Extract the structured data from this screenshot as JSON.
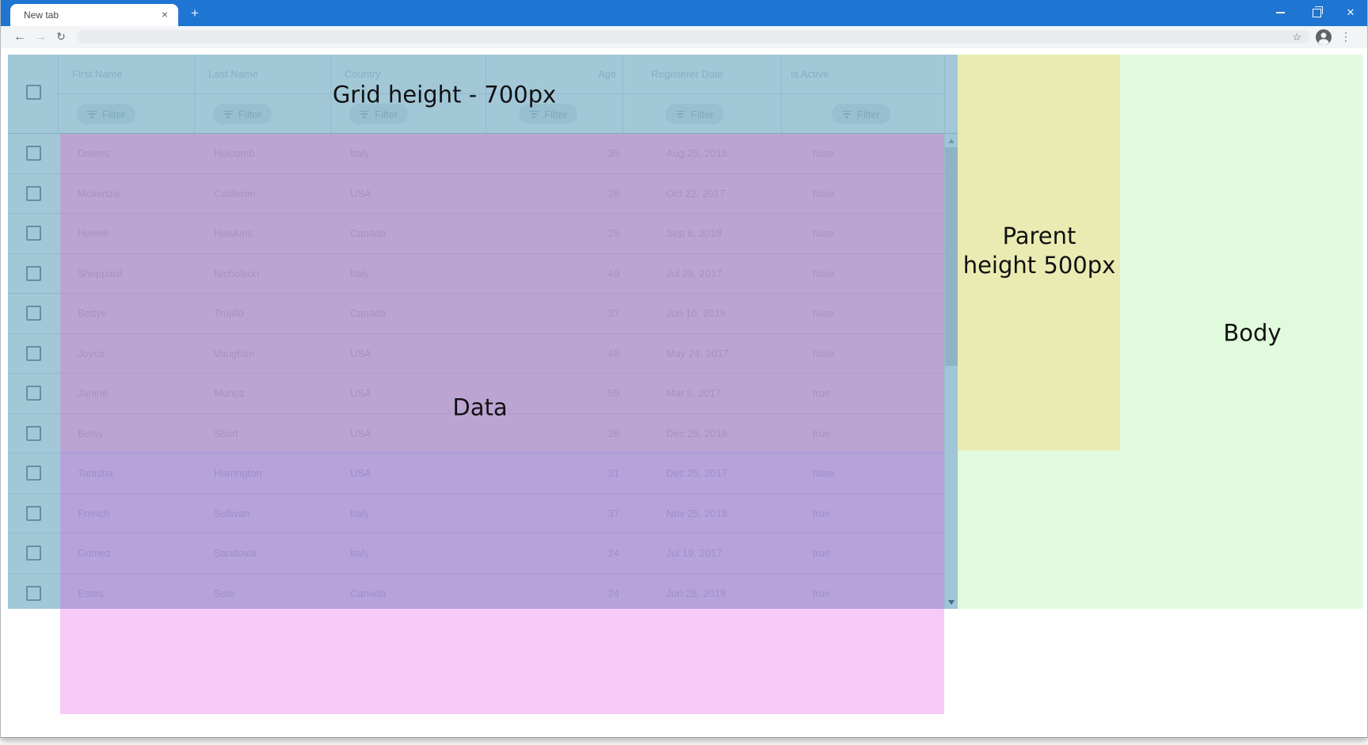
{
  "browser": {
    "tab_title": "New tab",
    "url_value": "",
    "icons": {
      "tab_close": "×",
      "new_tab": "+",
      "back": "←",
      "forward": "→",
      "reload": "↻",
      "star": "☆",
      "menu_dots": "⋮",
      "window_close": "✕"
    }
  },
  "labels": {
    "grid_height": "Grid height - 700px",
    "data": "Data",
    "parent_line1": "Parent",
    "parent_line2": "height 500px",
    "body": "Body"
  },
  "grid": {
    "filter_button_label": "Filter",
    "columns": [
      {
        "label": "First Name",
        "align": "left"
      },
      {
        "label": "Last Name",
        "align": "left"
      },
      {
        "label": "Country",
        "align": "left"
      },
      {
        "label": "Age",
        "align": "right"
      },
      {
        "label": "Registerer Date",
        "align": "left"
      },
      {
        "label": "Is Active",
        "align": "left"
      }
    ],
    "rows": [
      {
        "first_name": "Downs",
        "last_name": "Holcomb",
        "country": "Italy",
        "age": 35,
        "registerer_date": "Aug 25, 2018",
        "is_active": "false"
      },
      {
        "first_name": "Mckenzie",
        "last_name": "Calderon",
        "country": "USA",
        "age": 26,
        "registerer_date": "Oct 22, 2017",
        "is_active": "false"
      },
      {
        "first_name": "Howell",
        "last_name": "Hawkins",
        "country": "Canada",
        "age": 25,
        "registerer_date": "Sep 8, 2018",
        "is_active": "false"
      },
      {
        "first_name": "Sheppard",
        "last_name": "Nicholson",
        "country": "Italy",
        "age": 49,
        "registerer_date": "Jul 28, 2017",
        "is_active": "false"
      },
      {
        "first_name": "Bettye",
        "last_name": "Trujillo",
        "country": "Canada",
        "age": 37,
        "registerer_date": "Jun 10, 2019",
        "is_active": "false"
      },
      {
        "first_name": "Joyce",
        "last_name": "Vaughan",
        "country": "USA",
        "age": 48,
        "registerer_date": "May 24, 2017",
        "is_active": "false"
      },
      {
        "first_name": "Janine",
        "last_name": "Munoz",
        "country": "USA",
        "age": 59,
        "registerer_date": "Mar 9, 2017",
        "is_active": "true"
      },
      {
        "first_name": "Betsy",
        "last_name": "Short",
        "country": "USA",
        "age": 26,
        "registerer_date": "Dec 25, 2018",
        "is_active": "true"
      },
      {
        "first_name": "Tanisha",
        "last_name": "Harrington",
        "country": "USA",
        "age": 31,
        "registerer_date": "Dec 25, 2017",
        "is_active": "false"
      },
      {
        "first_name": "French",
        "last_name": "Sullivan",
        "country": "Italy",
        "age": 37,
        "registerer_date": "Nov 25, 2018",
        "is_active": "true"
      },
      {
        "first_name": "Gomez",
        "last_name": "Sandoval",
        "country": "Italy",
        "age": 24,
        "registerer_date": "Jul 19, 2017",
        "is_active": "true"
      },
      {
        "first_name": "Estes",
        "last_name": "Soto",
        "country": "Canada",
        "age": 24,
        "registerer_date": "Jun 28, 2019",
        "is_active": "true"
      }
    ]
  },
  "colors": {
    "titlebar_blue": "#1e75d2",
    "grid_overlay": "rgba(23,118,158,0.40)",
    "data_overlay": "rgba(230,80,230,0.30)",
    "parent_overlay": "rgba(245,215,118,0.42)",
    "body_overlay": "rgba(120,230,100,0.22)",
    "row_tint_overlay": "rgba(255,215,80,0.10)"
  }
}
